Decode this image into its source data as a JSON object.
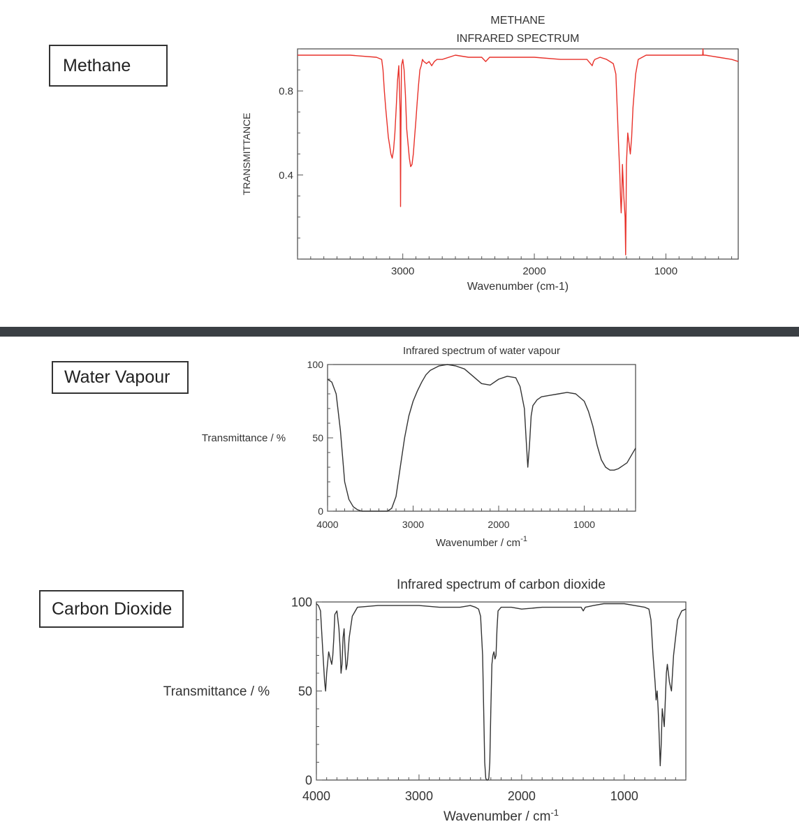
{
  "sections": {
    "methane_label": "Methane",
    "water_label": "Water Vapour",
    "co2_label": "Carbon Dioxide"
  },
  "chart_data": [
    {
      "type": "line",
      "title": "METHANE",
      "subtitle": "INFRARED SPECTRUM",
      "xlabel": "Wavenumber (cm-1)",
      "ylabel": "TRANSMITTANCE",
      "xlim": [
        3800,
        450
      ],
      "ylim": [
        0.0,
        1.0
      ],
      "xticks": [
        3000,
        2000,
        1000
      ],
      "xtick_labels": [
        "3000",
        "2000",
        "1000"
      ],
      "yticks": [
        0.4,
        0.8
      ],
      "ytick_labels": [
        "0.4",
        "0.8"
      ],
      "color": "#e8312a",
      "series": [
        {
          "x": [
            3800,
            3400,
            3200,
            3160,
            3150,
            3140,
            3130,
            3120,
            3110,
            3100,
            3090,
            3080,
            3070,
            3060,
            3050,
            3040,
            3030,
            3020,
            3017,
            3014,
            3010,
            3000,
            2990,
            2980,
            2970,
            2960,
            2950,
            2940,
            2930,
            2920,
            2910,
            2900,
            2890,
            2880,
            2870,
            2860,
            2850,
            2840,
            2820,
            2800,
            2780,
            2760,
            2740,
            2700,
            2600,
            2500,
            2400,
            2370,
            2340,
            2200,
            2000,
            1800,
            1600,
            1560,
            1550,
            1540,
            1500,
            1450,
            1400,
            1380,
            1370,
            1360,
            1350,
            1345,
            1340,
            1335,
            1330,
            1320,
            1310,
            1306,
            1303,
            1300,
            1290,
            1280,
            1270,
            1260,
            1250,
            1240,
            1230,
            1210,
            1150,
            1000,
            800,
            720,
            718,
            716,
            700,
            600,
            500,
            450
          ],
          "y": [
            0.97,
            0.97,
            0.96,
            0.95,
            0.9,
            0.8,
            0.72,
            0.65,
            0.58,
            0.54,
            0.5,
            0.48,
            0.52,
            0.6,
            0.72,
            0.85,
            0.92,
            0.7,
            0.25,
            0.6,
            0.92,
            0.95,
            0.9,
            0.78,
            0.62,
            0.55,
            0.48,
            0.44,
            0.45,
            0.5,
            0.58,
            0.66,
            0.75,
            0.83,
            0.9,
            0.92,
            0.95,
            0.94,
            0.93,
            0.94,
            0.92,
            0.94,
            0.95,
            0.95,
            0.97,
            0.96,
            0.96,
            0.94,
            0.96,
            0.96,
            0.96,
            0.95,
            0.95,
            0.92,
            0.94,
            0.95,
            0.96,
            0.95,
            0.93,
            0.88,
            0.72,
            0.55,
            0.4,
            0.3,
            0.22,
            0.3,
            0.45,
            0.3,
            0.2,
            0.02,
            0.2,
            0.45,
            0.6,
            0.55,
            0.5,
            0.58,
            0.72,
            0.8,
            0.88,
            0.95,
            0.97,
            0.97,
            0.97,
            0.97,
            1.0,
            0.97,
            0.97,
            0.96,
            0.95,
            0.94
          ]
        }
      ]
    },
    {
      "type": "line",
      "title": "Infrared spectrum of water vapour",
      "xlabel": "Wavenumber / cm",
      "xlabel_superscript": "-1",
      "ylabel": "Transmittance / %",
      "xlim": [
        4000,
        400
      ],
      "ylim": [
        0,
        100
      ],
      "xticks": [
        4000,
        3000,
        2000,
        1000
      ],
      "xtick_labels": [
        "4000",
        "3000",
        "2000",
        "1000"
      ],
      "yticks": [
        0,
        50,
        100
      ],
      "ytick_labels": [
        "0",
        "50",
        "100"
      ],
      "color": "#333333",
      "series": [
        {
          "x": [
            4000,
            3950,
            3900,
            3850,
            3800,
            3750,
            3700,
            3650,
            3600,
            3500,
            3400,
            3300,
            3250,
            3200,
            3150,
            3100,
            3050,
            3000,
            2950,
            2900,
            2850,
            2800,
            2700,
            2600,
            2500,
            2400,
            2300,
            2200,
            2100,
            2000,
            1900,
            1800,
            1750,
            1700,
            1680,
            1660,
            1640,
            1620,
            1600,
            1550,
            1500,
            1400,
            1300,
            1200,
            1100,
            1000,
            950,
            900,
            850,
            800,
            750,
            700,
            650,
            600,
            500,
            400
          ],
          "y": [
            90,
            88,
            80,
            55,
            20,
            8,
            3,
            1,
            0,
            0,
            0,
            0,
            2,
            10,
            30,
            50,
            65,
            75,
            82,
            88,
            93,
            96,
            99,
            100,
            99,
            97,
            92,
            87,
            86,
            90,
            92,
            91,
            85,
            70,
            50,
            30,
            45,
            65,
            72,
            76,
            78,
            79,
            80,
            81,
            80,
            75,
            68,
            58,
            45,
            35,
            30,
            28,
            28,
            29,
            33,
            43
          ]
        }
      ]
    },
    {
      "type": "line",
      "title": "Infrared spectrum of carbon dioxide",
      "xlabel": "Wavenumber / cm",
      "xlabel_superscript": "-1",
      "ylabel": "Transmittance / %",
      "xlim": [
        4000,
        400
      ],
      "ylim": [
        0,
        100
      ],
      "xticks": [
        4000,
        3000,
        2000,
        1000
      ],
      "xtick_labels": [
        "4000",
        "3000",
        "2000",
        "1000"
      ],
      "yticks": [
        0,
        50,
        100
      ],
      "ytick_labels": [
        "0",
        "50",
        "100"
      ],
      "color": "#333333",
      "series": [
        {
          "x": [
            4000,
            3980,
            3960,
            3940,
            3930,
            3920,
            3910,
            3900,
            3880,
            3860,
            3850,
            3840,
            3830,
            3820,
            3800,
            3780,
            3770,
            3760,
            3750,
            3740,
            3730,
            3720,
            3710,
            3700,
            3680,
            3650,
            3600,
            3400,
            3200,
            3000,
            2800,
            2600,
            2500,
            2450,
            2420,
            2400,
            2380,
            2370,
            2360,
            2350,
            2340,
            2330,
            2320,
            2310,
            2300,
            2290,
            2280,
            2270,
            2260,
            2250,
            2240,
            2230,
            2200,
            2100,
            2000,
            1800,
            1600,
            1420,
            1400,
            1380,
            1300,
            1200,
            1100,
            1000,
            900,
            800,
            760,
            740,
            720,
            700,
            690,
            680,
            670,
            660,
            650,
            640,
            630,
            620,
            610,
            600,
            590,
            580,
            560,
            540,
            520,
            480,
            440,
            400
          ],
          "y": [
            99,
            98,
            95,
            75,
            65,
            55,
            50,
            60,
            72,
            67,
            65,
            70,
            80,
            93,
            95,
            85,
            75,
            60,
            65,
            80,
            85,
            72,
            62,
            65,
            80,
            92,
            97,
            98,
            98,
            98,
            97,
            97,
            98,
            97,
            96,
            92,
            70,
            40,
            10,
            1,
            0,
            0,
            1,
            10,
            40,
            65,
            70,
            72,
            68,
            70,
            85,
            95,
            97,
            97,
            96,
            97,
            97,
            97,
            95,
            97,
            98,
            99,
            99,
            99,
            98,
            97,
            96,
            90,
            70,
            55,
            45,
            50,
            40,
            25,
            8,
            20,
            40,
            35,
            30,
            45,
            60,
            65,
            55,
            50,
            70,
            90,
            95,
            96
          ]
        }
      ]
    }
  ]
}
